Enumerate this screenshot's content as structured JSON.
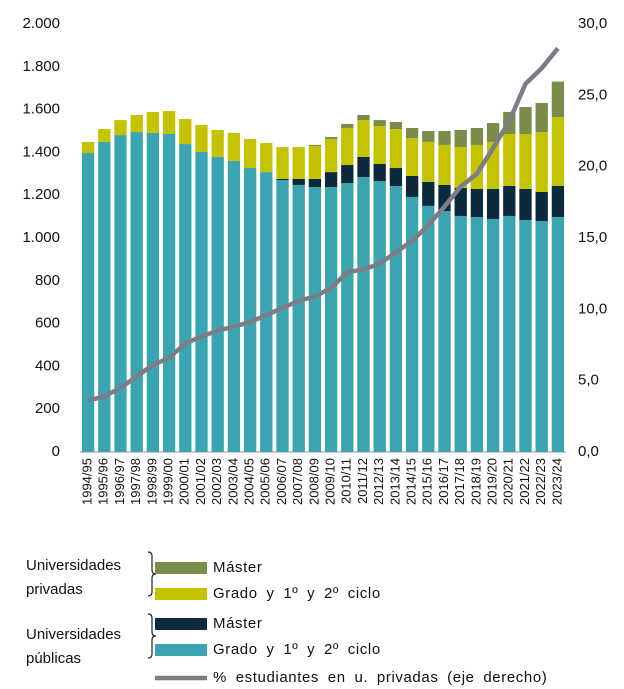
{
  "chart_data": {
    "type": "bar",
    "stacked": true,
    "categories": [
      "1994/95",
      "1995/96",
      "1996/97",
      "1997/98",
      "1998/99",
      "1999/00",
      "2000/01",
      "2001/02",
      "2002/03",
      "2003/04",
      "2004/05",
      "2005/06",
      "2006/07",
      "2007/08",
      "2008/09",
      "2009/10",
      "2010/11",
      "2011/12",
      "2012/13",
      "2013/14",
      "2014/15",
      "2015/16",
      "2016/17",
      "2017/18",
      "2018/19",
      "2019/20",
      "2020/21",
      "2021/22",
      "2022/23",
      "2023/24"
    ],
    "series": [
      {
        "name": "Grado y 1º y 2º ciclo",
        "group": "Universidades públicas",
        "color": "#3aa5b0",
        "values": [
          1397,
          1449,
          1481,
          1495,
          1491,
          1486,
          1439,
          1402,
          1379,
          1360,
          1327,
          1308,
          1271,
          1248,
          1238,
          1238,
          1257,
          1285,
          1266,
          1243,
          1192,
          1150,
          1126,
          1103,
          1098,
          1089,
          1103,
          1084,
          1079,
          1098
        ]
      },
      {
        "name": "Máster",
        "group": "Universidades públicas",
        "color": "#0d2a3d",
        "values": [
          0,
          0,
          0,
          0,
          0,
          0,
          0,
          0,
          0,
          0,
          0,
          0,
          5,
          28,
          38,
          70,
          84,
          94,
          80,
          84,
          98,
          112,
          122,
          131,
          131,
          140,
          140,
          145,
          136,
          145
        ]
      },
      {
        "name": "Grado y 1º y 2º ciclo",
        "group": "Universidades privadas",
        "color": "#c3c300",
        "values": [
          52,
          60,
          70,
          80,
          98,
          107,
          117,
          126,
          126,
          131,
          136,
          136,
          149,
          149,
          154,
          155,
          173,
          172,
          177,
          182,
          177,
          187,
          187,
          191,
          206,
          220,
          243,
          257,
          280,
          322
        ]
      },
      {
        "name": "Máster",
        "group": "Universidades privadas",
        "color": "#7a8c4a",
        "values": [
          0,
          0,
          0,
          0,
          0,
          0,
          0,
          0,
          0,
          0,
          0,
          0,
          0,
          0,
          5,
          9,
          19,
          24,
          28,
          33,
          47,
          51,
          65,
          80,
          79,
          88,
          103,
          126,
          136,
          166
        ]
      },
      {
        "name": "% estudiantes en u. privadas (eje derecho)",
        "axis": "y2",
        "type": "line",
        "color": "#7d7d85",
        "values": [
          3.6,
          3.9,
          4.5,
          5.3,
          6.1,
          6.6,
          7.6,
          8.1,
          8.5,
          8.8,
          9.1,
          9.6,
          10.1,
          10.6,
          10.9,
          11.5,
          12.6,
          12.8,
          13.2,
          14.0,
          14.8,
          15.9,
          17.2,
          18.6,
          19.5,
          21.3,
          23.2,
          25.8,
          26.9,
          28.3
        ]
      }
    ],
    "legend_groups": [
      "Universidades privadas",
      "Universidades públicas"
    ],
    "ylim": [
      0,
      2000
    ],
    "yticks": [
      0,
      200,
      400,
      600,
      800,
      {
        "value": 1000,
        "label": "1.000"
      },
      {
        "value": 1200,
        "label": "1.200"
      },
      {
        "value": 1400,
        "label": "1.400"
      },
      {
        "value": 1600,
        "label": "1.600"
      },
      {
        "value": 1800,
        "label": "1.800"
      },
      {
        "value": 2000,
        "label": "2.000"
      }
    ],
    "y2lim": [
      0,
      30
    ],
    "y2ticks": [
      {
        "value": 0,
        "label": "0,0"
      },
      {
        "value": 5,
        "label": "5,0"
      },
      {
        "value": 10,
        "label": "10,0"
      },
      {
        "value": 15,
        "label": "15,0"
      },
      {
        "value": 20,
        "label": "20,0"
      },
      {
        "value": 25,
        "label": "25,0"
      },
      {
        "value": 30,
        "label": "30,0"
      }
    ],
    "grid": false
  }
}
